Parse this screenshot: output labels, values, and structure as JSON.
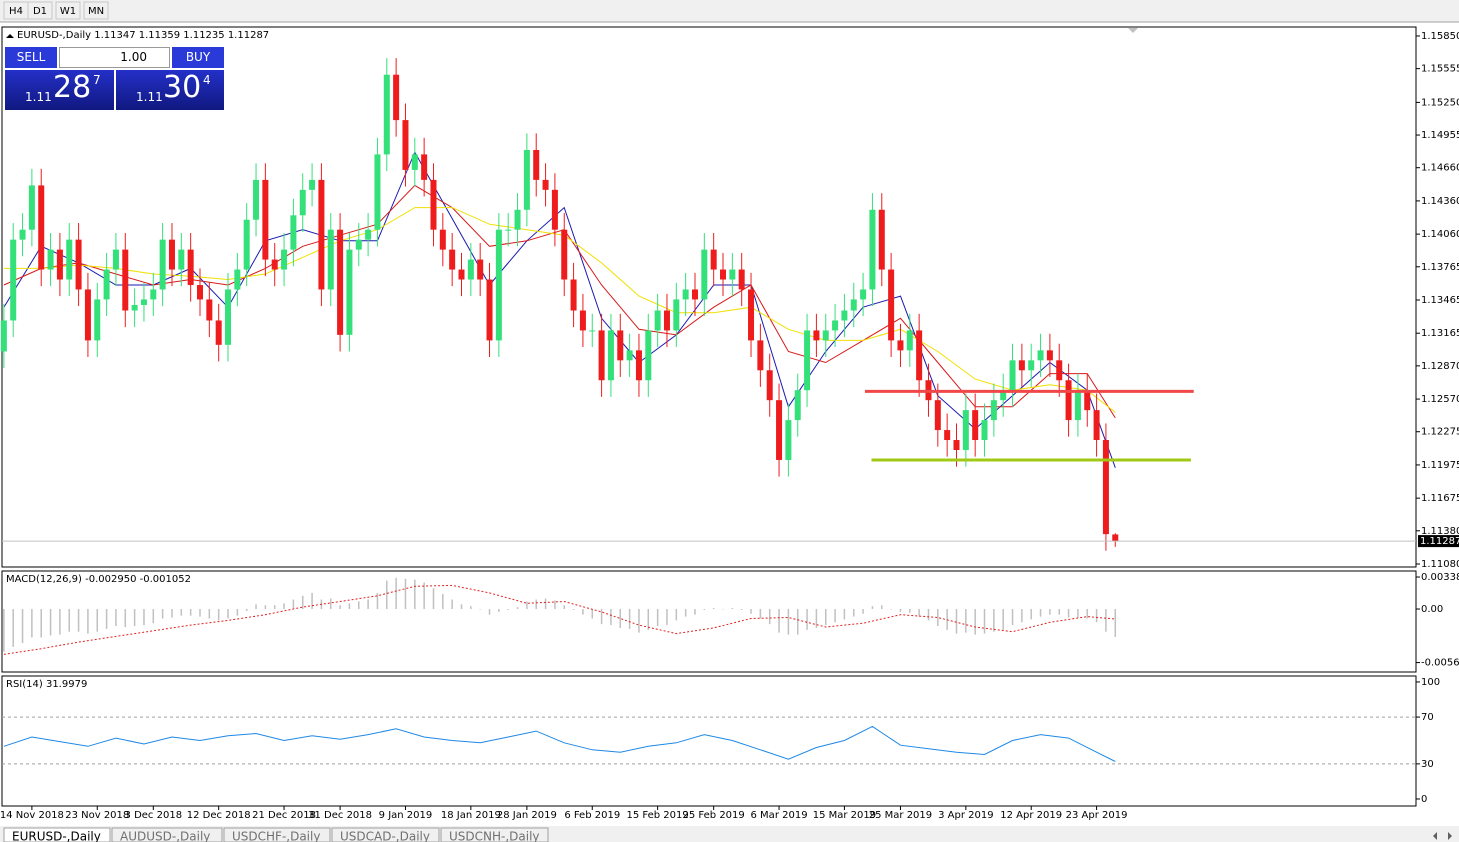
{
  "toolbar": {
    "timeframes": [
      "H4",
      "D1",
      "W1",
      "MN"
    ]
  },
  "trade_panel": {
    "sell": "SELL",
    "lots": "1.00",
    "buy": "BUY",
    "sell_big": "1.11",
    "sell_digits": "28",
    "sell_point": "7",
    "buy_big": "1.11",
    "buy_digits": "30",
    "buy_point": "4"
  },
  "tabs": [
    "EURUSD-,Daily",
    "AUDUSD-,Daily",
    "USDCHF-,Daily",
    "USDCAD-,Daily",
    "USDCNH-,Daily"
  ],
  "chart_data": [
    {
      "type": "candlestick",
      "title": "EURUSD-,Daily  1.11347 1.11359 1.11235 1.11287",
      "categories": [
        null,
        null,
        null,
        "14 Nov 2018",
        null,
        null,
        null,
        null,
        null,
        null,
        "23 Nov 2018",
        null,
        null,
        null,
        null,
        null,
        "3 Dec 2018",
        null,
        null,
        null,
        null,
        null,
        null,
        "12 Dec 2018",
        null,
        null,
        null,
        null,
        null,
        null,
        "21 Dec 2018",
        null,
        null,
        null,
        null,
        null,
        "31 Dec 2018",
        null,
        null,
        null,
        null,
        null,
        null,
        "9 Jan 2019",
        null,
        null,
        null,
        null,
        null,
        null,
        "18 Jan 2019",
        null,
        null,
        null,
        null,
        null,
        "28 Jan 2019",
        null,
        null,
        null,
        null,
        null,
        null,
        "6 Feb 2019",
        null,
        null,
        null,
        null,
        null,
        null,
        "15 Feb 2019",
        null,
        null,
        null,
        null,
        null,
        "25 Feb 2019",
        null,
        null,
        null,
        null,
        null,
        null,
        "6 Mar 2019",
        null,
        null,
        null,
        null,
        null,
        null,
        "15 Mar 2019",
        null,
        null,
        null,
        null,
        null,
        "25 Mar 2019",
        null,
        null,
        null,
        null,
        null,
        null,
        "3 Apr 2019",
        null,
        null,
        null,
        null,
        null,
        null,
        "12 Apr 2019",
        null,
        null,
        null,
        null,
        null,
        null,
        "23 Apr 2019",
        null,
        null
      ],
      "open": [
        1.13,
        1.1328,
        1.1401,
        1.141,
        1.145,
        1.1374,
        1.1392,
        1.1365,
        1.1401,
        1.1356,
        1.131,
        1.1347,
        1.1374,
        1.1392,
        1.1337,
        1.1342,
        1.1347,
        1.1356,
        1.1401,
        1.1374,
        1.1392,
        1.136,
        1.1347,
        1.1328,
        1.1306,
        1.1356,
        1.1374,
        1.1419,
        1.1455,
        1.1383,
        1.1374,
        1.1392,
        1.1423,
        1.1446,
        1.1455,
        1.1356,
        1.141,
        1.1315,
        1.1392,
        1.1401,
        1.141,
        1.1478,
        1.155,
        1.1509,
        1.1464,
        1.1478,
        1.1455,
        1.141,
        1.1392,
        1.1374,
        1.1365,
        1.1383,
        1.1365,
        1.131,
        1.141,
        1.141,
        1.1428,
        1.1482,
        1.1455,
        1.1446,
        1.141,
        1.1365,
        1.1337,
        1.1319,
        1.1319,
        1.1274,
        1.1319,
        1.1292,
        1.1301,
        1.1274,
        1.1319,
        1.1337,
        1.1319,
        1.1347,
        1.1356,
        1.1347,
        1.1392,
        1.1374,
        1.1365,
        1.1374,
        1.1356,
        1.131,
        1.1283,
        1.1256,
        1.1202,
        1.1238,
        1.1265,
        1.1319,
        1.131,
        1.1319,
        1.1328,
        1.1337,
        1.1347,
        1.1356,
        1.1428,
        1.1374,
        1.131,
        1.1301,
        1.1319,
        1.1274,
        1.1256,
        1.1229,
        1.122,
        1.1211,
        1.1247,
        1.122,
        1.1238,
        1.1256,
        1.1265,
        1.1292,
        1.1283,
        1.1292,
        1.1301,
        1.1292,
        1.1274,
        1.1238,
        1.1265,
        1.1247,
        1.122,
        1.11347
      ],
      "high": [
        1.1343,
        1.1416,
        1.1425,
        1.1465,
        1.1465,
        1.1407,
        1.1407,
        1.1416,
        1.1416,
        1.1371,
        1.1362,
        1.1389,
        1.1407,
        1.1407,
        1.1357,
        1.1362,
        1.1371,
        1.1416,
        1.1416,
        1.1407,
        1.1407,
        1.1375,
        1.1362,
        1.1343,
        1.1371,
        1.1389,
        1.1434,
        1.147,
        1.147,
        1.1398,
        1.1407,
        1.1438,
        1.1461,
        1.147,
        1.147,
        1.1425,
        1.1425,
        1.1407,
        1.1416,
        1.1425,
        1.1493,
        1.1565,
        1.1565,
        1.1524,
        1.1493,
        1.1493,
        1.147,
        1.1425,
        1.1407,
        1.1389,
        1.1398,
        1.1398,
        1.138,
        1.1425,
        1.1425,
        1.1443,
        1.1497,
        1.1497,
        1.147,
        1.1461,
        1.1425,
        1.138,
        1.1352,
        1.1334,
        1.1334,
        1.1334,
        1.1334,
        1.1316,
        1.1316,
        1.1334,
        1.1352,
        1.1352,
        1.1362,
        1.1371,
        1.1371,
        1.1407,
        1.1407,
        1.1389,
        1.1389,
        1.1389,
        1.1371,
        1.1325,
        1.1298,
        1.1271,
        1.1253,
        1.128,
        1.1334,
        1.1334,
        1.1334,
        1.1343,
        1.1352,
        1.1362,
        1.1371,
        1.1443,
        1.1443,
        1.1389,
        1.1325,
        1.1334,
        1.1334,
        1.1289,
        1.1271,
        1.1244,
        1.1235,
        1.1262,
        1.1262,
        1.1253,
        1.1271,
        1.128,
        1.1307,
        1.1307,
        1.1307,
        1.1316,
        1.1316,
        1.1307,
        1.1289,
        1.128,
        1.128,
        1.1262,
        1.1235,
        1.11359
      ],
      "low": [
        1.1285,
        1.1313,
        1.1386,
        1.1395,
        1.1359,
        1.1359,
        1.135,
        1.135,
        1.1341,
        1.1295,
        1.1295,
        1.1332,
        1.1359,
        1.1322,
        1.1322,
        1.1327,
        1.1332,
        1.1341,
        1.1359,
        1.1359,
        1.1345,
        1.1332,
        1.1313,
        1.1291,
        1.1291,
        1.1341,
        1.1359,
        1.1404,
        1.1368,
        1.1359,
        1.1359,
        1.1377,
        1.1408,
        1.1431,
        1.1341,
        1.1341,
        1.13,
        1.13,
        1.1377,
        1.1386,
        1.1395,
        1.1463,
        1.1494,
        1.1449,
        1.1449,
        1.144,
        1.1395,
        1.1377,
        1.1359,
        1.135,
        1.135,
        1.135,
        1.1295,
        1.1295,
        1.1395,
        1.1395,
        1.1413,
        1.144,
        1.1431,
        1.1395,
        1.135,
        1.1322,
        1.1304,
        1.1304,
        1.1259,
        1.1259,
        1.1277,
        1.1277,
        1.1259,
        1.1259,
        1.1304,
        1.1304,
        1.1304,
        1.1332,
        1.1332,
        1.1332,
        1.1359,
        1.135,
        1.135,
        1.1341,
        1.1295,
        1.1268,
        1.1241,
        1.1187,
        1.1187,
        1.1223,
        1.125,
        1.1295,
        1.1295,
        1.1304,
        1.1313,
        1.1322,
        1.1332,
        1.1341,
        1.1359,
        1.1295,
        1.1286,
        1.1286,
        1.1259,
        1.1241,
        1.1214,
        1.1205,
        1.1196,
        1.1196,
        1.1205,
        1.1205,
        1.1223,
        1.1241,
        1.125,
        1.1268,
        1.1268,
        1.1277,
        1.1277,
        1.1259,
        1.1223,
        1.1223,
        1.1232,
        1.1205,
        1.112,
        1.11235
      ],
      "close": [
        1.1328,
        1.1401,
        1.141,
        1.145,
        1.1374,
        1.1392,
        1.1365,
        1.1401,
        1.1356,
        1.131,
        1.1347,
        1.1374,
        1.1392,
        1.1337,
        1.1342,
        1.1347,
        1.1356,
        1.1401,
        1.1374,
        1.1392,
        1.136,
        1.1347,
        1.1328,
        1.1306,
        1.1356,
        1.1374,
        1.1419,
        1.1455,
        1.1383,
        1.1374,
        1.1392,
        1.1423,
        1.1446,
        1.1455,
        1.1356,
        1.141,
        1.1315,
        1.1392,
        1.1401,
        1.141,
        1.1478,
        1.155,
        1.1509,
        1.1464,
        1.1478,
        1.1455,
        1.141,
        1.1392,
        1.1374,
        1.1365,
        1.1383,
        1.1365,
        1.131,
        1.141,
        1.141,
        1.1428,
        1.1482,
        1.1455,
        1.1446,
        1.141,
        1.1365,
        1.1337,
        1.1319,
        1.1319,
        1.1274,
        1.1319,
        1.1292,
        1.1301,
        1.1274,
        1.1319,
        1.1337,
        1.1319,
        1.1347,
        1.1356,
        1.1347,
        1.1392,
        1.1374,
        1.1365,
        1.1374,
        1.1356,
        1.131,
        1.1283,
        1.1256,
        1.1202,
        1.1238,
        1.1265,
        1.1319,
        1.131,
        1.1319,
        1.1328,
        1.1337,
        1.1347,
        1.1356,
        1.1428,
        1.1374,
        1.131,
        1.1301,
        1.1319,
        1.1274,
        1.1256,
        1.1229,
        1.122,
        1.1211,
        1.1247,
        1.122,
        1.1238,
        1.1256,
        1.1265,
        1.1292,
        1.1283,
        1.1292,
        1.1301,
        1.1292,
        1.1274,
        1.1238,
        1.1265,
        1.1247,
        1.122,
        1.1135,
        1.11287
      ],
      "colors": {
        "up": "#33e07a",
        "down": "#ee1c1c"
      },
      "overlays": [
        {
          "color": "#1a1ab0",
          "x": [
            0,
            4,
            8,
            12,
            16,
            20,
            24,
            28,
            32,
            36,
            40,
            44,
            48,
            52,
            56,
            60,
            64,
            68,
            72,
            76,
            80,
            84,
            88,
            92,
            96,
            100,
            104,
            108,
            112,
            116,
            119
          ],
          "values": [
            1.134,
            1.1395,
            1.138,
            1.136,
            1.136,
            1.1375,
            1.134,
            1.14,
            1.141,
            1.14,
            1.14,
            1.148,
            1.142,
            1.136,
            1.14,
            1.143,
            1.133,
            1.129,
            1.1315,
            1.136,
            1.136,
            1.125,
            1.13,
            1.134,
            1.135,
            1.126,
            1.123,
            1.126,
            1.129,
            1.1265,
            1.1195
          ]
        },
        {
          "color": "#d81818",
          "x": [
            0,
            4,
            8,
            12,
            16,
            20,
            24,
            28,
            32,
            36,
            40,
            44,
            48,
            52,
            56,
            60,
            64,
            68,
            72,
            76,
            80,
            84,
            88,
            92,
            96,
            100,
            104,
            108,
            112,
            116,
            119
          ],
          "values": [
            1.136,
            1.1375,
            1.138,
            1.137,
            1.136,
            1.1365,
            1.136,
            1.1375,
            1.1395,
            1.1405,
            1.1415,
            1.145,
            1.143,
            1.1395,
            1.14,
            1.141,
            1.136,
            1.132,
            1.1315,
            1.134,
            1.136,
            1.13,
            1.129,
            1.131,
            1.133,
            1.129,
            1.125,
            1.125,
            1.128,
            1.128,
            1.124
          ]
        },
        {
          "color": "#f0e000",
          "x": [
            0,
            4,
            8,
            12,
            16,
            20,
            24,
            28,
            32,
            36,
            40,
            44,
            48,
            52,
            56,
            60,
            64,
            68,
            72,
            76,
            80,
            84,
            88,
            92,
            96,
            100,
            104,
            108,
            112,
            116,
            119
          ],
          "values": [
            1.1375,
            1.1375,
            1.1378,
            1.1375,
            1.137,
            1.1368,
            1.1365,
            1.137,
            1.1385,
            1.14,
            1.141,
            1.143,
            1.143,
            1.1415,
            1.141,
            1.1405,
            1.138,
            1.135,
            1.1335,
            1.1335,
            1.134,
            1.132,
            1.131,
            1.131,
            1.132,
            1.13,
            1.1275,
            1.1265,
            1.127,
            1.1265,
            1.1245
          ]
        }
      ],
      "hlines": [
        {
          "value": 1.1264,
          "color": "#f04848",
          "x": [
            92.2,
            127.4
          ]
        },
        {
          "value": 1.1202,
          "color": "#a0c814",
          "x": [
            92.9,
            127.1
          ]
        }
      ],
      "xlim": [
        -0.2,
        151.2
      ],
      "ylim": [
        1.11053,
        1.15931
      ],
      "yticks": [
        {
          "value": 1.1585,
          "label": "1.15850"
        },
        1.15555,
        {
          "value": 1.1525,
          "label": "1.15250"
        },
        1.14955,
        {
          "value": 1.1466,
          "label": "1.14660"
        },
        {
          "value": 1.1436,
          "label": "1.14360"
        },
        {
          "value": 1.1406,
          "label": "1.14060"
        },
        1.13765,
        1.13465,
        1.13165,
        {
          "value": 1.1287,
          "label": "1.12870"
        },
        {
          "value": 1.1257,
          "label": "1.12570"
        },
        1.12275,
        1.11975,
        1.11675,
        {
          "value": 1.1138,
          "label": "1.11380"
        },
        {
          "value": 1.1108,
          "label": "1.11080"
        }
      ]
    },
    {
      "type": "macd",
      "title": "MACD(12,26,9) -0.002950 -0.001052",
      "color": "#c0c0c0",
      "values": [
        -0.0045,
        -0.004,
        -0.0036,
        -0.003,
        -0.003,
        -0.0028,
        -0.0027,
        -0.0024,
        -0.0024,
        -0.0026,
        -0.0024,
        -0.0021,
        -0.0018,
        -0.0019,
        -0.0018,
        -0.0017,
        -0.0015,
        -0.001,
        -0.0009,
        -0.0007,
        -0.0007,
        -0.0008,
        -0.001,
        -0.0012,
        -0.001,
        -0.0007,
        -0.0002,
        0.0005,
        0.0004,
        0.0004,
        0.0006,
        0.001,
        0.0014,
        0.0017,
        0.001,
        0.0011,
        0.0004,
        0.0006,
        0.0008,
        0.001,
        0.0017,
        0.003,
        0.0033,
        0.0032,
        0.0031,
        0.0028,
        0.0022,
        0.0016,
        0.001,
        0.0005,
        0.0003,
        0.0,
        -0.0006,
        -0.0003,
        -0.0001,
        0.0002,
        0.0008,
        0.001,
        0.0011,
        0.0009,
        0.0004,
        -0.0001,
        -0.0006,
        -0.001,
        -0.0016,
        -0.0017,
        -0.002,
        -0.0021,
        -0.0025,
        -0.0022,
        -0.0018,
        -0.0017,
        -0.0012,
        -0.0008,
        -0.0006,
        -0.0001,
        0.0001,
        0.0,
        0.0001,
        -0.0001,
        -0.0005,
        -0.001,
        -0.0016,
        -0.0025,
        -0.0027,
        -0.0027,
        -0.0022,
        -0.002,
        -0.0017,
        -0.0014,
        -0.0011,
        -0.0008,
        -0.0005,
        0.0003,
        0.0004,
        0.0,
        -0.0003,
        -0.0004,
        -0.0008,
        -0.0012,
        -0.0018,
        -0.0022,
        -0.0026,
        -0.0025,
        -0.0027,
        -0.0026,
        -0.0024,
        -0.0022,
        -0.0017,
        -0.0014,
        -0.0011,
        -0.0008,
        -0.0006,
        -0.0006,
        -0.0009,
        -0.0009,
        -0.001,
        -0.0014,
        -0.0024,
        -0.00295
      ],
      "signal": {
        "color": "#e02020",
        "x": [
          0,
          4,
          8,
          12,
          16,
          20,
          24,
          28,
          32,
          36,
          40,
          44,
          48,
          52,
          56,
          60,
          64,
          68,
          72,
          76,
          80,
          84,
          88,
          92,
          96,
          100,
          104,
          108,
          112,
          116,
          119
        ],
        "values": [
          -0.0048,
          -0.0042,
          -0.0035,
          -0.0029,
          -0.0023,
          -0.0017,
          -0.0012,
          -0.0006,
          0.0002,
          0.0008,
          0.0014,
          0.0024,
          0.0025,
          0.0017,
          0.0006,
          0.0008,
          -0.0003,
          -0.0017,
          -0.0026,
          -0.002,
          -0.001,
          -0.0009,
          -0.0019,
          -0.0015,
          -0.0006,
          -0.0009,
          -0.0019,
          -0.0024,
          -0.0014,
          -0.0008,
          -0.001052
        ]
      },
      "ylim": [
        -0.00666,
        0.00402
      ],
      "yticks": [
        0.003383,
        {
          "value": 0,
          "label": "0.00"
        },
        -0.005663
      ]
    },
    {
      "type": "line",
      "title": "RSI(14) 31.9979",
      "color": "#1e88e5",
      "x": [
        0,
        3,
        6,
        9,
        12,
        15,
        18,
        21,
        24,
        27,
        30,
        33,
        36,
        39,
        42,
        45,
        48,
        51,
        54,
        57,
        60,
        63,
        66,
        69,
        72,
        75,
        78,
        81,
        84,
        87,
        90,
        93,
        96,
        99,
        102,
        105,
        108,
        111,
        114,
        117,
        119
      ],
      "values": [
        45,
        53,
        49,
        45,
        52,
        47,
        53,
        50,
        54,
        56,
        50,
        54,
        51,
        55,
        60,
        53,
        50,
        48,
        53,
        58,
        48,
        42,
        40,
        45,
        48,
        55,
        50,
        42,
        34,
        44,
        50,
        62,
        46,
        43,
        40,
        38,
        50,
        55,
        52,
        40,
        31.9979
      ],
      "ylim": [
        -6,
        105.1
      ],
      "yticks": [
        100,
        70,
        30,
        0
      ],
      "levels": [
        70,
        30
      ]
    }
  ]
}
